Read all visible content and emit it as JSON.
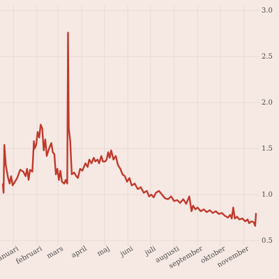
{
  "chart_data": {
    "type": "line",
    "x_unit": "day",
    "x_start": "2021-01-01",
    "ylim": [
      0.5,
      3.0
    ],
    "yticks": [
      0.5,
      1.0,
      1.5,
      2.0,
      2.5,
      3.0
    ],
    "ytick_labels": [
      "0.5",
      "1.0",
      "1.5",
      "2.0",
      "2.5",
      "3.0"
    ],
    "xticks": [
      {
        "date": "2021-01-15",
        "label": "januari"
      },
      {
        "date": "2021-02-15",
        "label": "februari"
      },
      {
        "date": "2021-03-15",
        "label": "mars"
      },
      {
        "date": "2021-04-15",
        "label": "april"
      },
      {
        "date": "2021-05-15",
        "label": "maj"
      },
      {
        "date": "2021-06-15",
        "label": "juni"
      },
      {
        "date": "2021-07-15",
        "label": "juli"
      },
      {
        "date": "2021-08-15",
        "label": "augusti"
      },
      {
        "date": "2021-09-15",
        "label": "september"
      },
      {
        "date": "2021-10-15",
        "label": "oktober"
      },
      {
        "date": "2021-11-15",
        "label": "november"
      }
    ],
    "grid": true,
    "x_label_rotation": -30,
    "series": [
      {
        "color": "#c0392b",
        "points": [
          [
            "2021-01-01",
            1.12
          ],
          [
            "2021-01-02",
            1.02
          ],
          [
            "2021-01-03",
            1.54
          ],
          [
            "2021-01-05",
            1.32
          ],
          [
            "2021-01-08",
            1.18
          ],
          [
            "2021-01-10",
            1.12
          ],
          [
            "2021-01-12",
            1.2
          ],
          [
            "2021-01-14",
            1.1
          ],
          [
            "2021-01-17",
            1.14
          ],
          [
            "2021-01-20",
            1.18
          ],
          [
            "2021-01-24",
            1.27
          ],
          [
            "2021-01-28",
            1.25
          ],
          [
            "2021-01-31",
            1.2
          ],
          [
            "2021-02-02",
            1.28
          ],
          [
            "2021-02-04",
            1.16
          ],
          [
            "2021-02-06",
            1.27
          ],
          [
            "2021-02-09",
            1.25
          ],
          [
            "2021-02-11",
            1.58
          ],
          [
            "2021-02-12",
            1.5
          ],
          [
            "2021-02-14",
            1.54
          ],
          [
            "2021-02-16",
            1.68
          ],
          [
            "2021-02-18",
            1.62
          ],
          [
            "2021-02-20",
            1.76
          ],
          [
            "2021-02-22",
            1.72
          ],
          [
            "2021-02-24",
            1.48
          ],
          [
            "2021-02-26",
            1.6
          ],
          [
            "2021-02-28",
            1.42
          ],
          [
            "2021-03-03",
            1.5
          ],
          [
            "2021-03-06",
            1.56
          ],
          [
            "2021-03-08",
            1.46
          ],
          [
            "2021-03-10",
            1.44
          ],
          [
            "2021-03-12",
            1.22
          ],
          [
            "2021-03-14",
            1.28
          ],
          [
            "2021-03-16",
            1.16
          ],
          [
            "2021-03-18",
            1.26
          ],
          [
            "2021-03-20",
            1.14
          ],
          [
            "2021-03-23",
            1.12
          ],
          [
            "2021-03-25",
            1.16
          ],
          [
            "2021-03-27",
            1.12
          ],
          [
            "2021-03-28",
            2.76
          ],
          [
            "2021-03-29",
            1.72
          ],
          [
            "2021-03-31",
            1.58
          ],
          [
            "2021-04-02",
            1.22
          ],
          [
            "2021-04-05",
            1.24
          ],
          [
            "2021-04-08",
            1.2
          ],
          [
            "2021-04-10",
            1.18
          ],
          [
            "2021-04-13",
            1.28
          ],
          [
            "2021-04-16",
            1.26
          ],
          [
            "2021-04-20",
            1.34
          ],
          [
            "2021-04-23",
            1.3
          ],
          [
            "2021-04-25",
            1.38
          ],
          [
            "2021-04-28",
            1.34
          ],
          [
            "2021-05-01",
            1.4
          ],
          [
            "2021-05-03",
            1.36
          ],
          [
            "2021-05-06",
            1.38
          ],
          [
            "2021-05-08",
            1.34
          ],
          [
            "2021-05-11",
            1.42
          ],
          [
            "2021-05-13",
            1.36
          ],
          [
            "2021-05-16",
            1.36
          ],
          [
            "2021-05-18",
            1.38
          ],
          [
            "2021-05-20",
            1.46
          ],
          [
            "2021-05-22",
            1.4
          ],
          [
            "2021-05-24",
            1.48
          ],
          [
            "2021-05-27",
            1.38
          ],
          [
            "2021-05-30",
            1.42
          ],
          [
            "2021-06-02",
            1.32
          ],
          [
            "2021-06-05",
            1.28
          ],
          [
            "2021-06-08",
            1.22
          ],
          [
            "2021-06-11",
            1.2
          ],
          [
            "2021-06-14",
            1.14
          ],
          [
            "2021-06-17",
            1.18
          ],
          [
            "2021-06-20",
            1.1
          ],
          [
            "2021-06-24",
            1.12
          ],
          [
            "2021-06-28",
            1.06
          ],
          [
            "2021-07-02",
            1.08
          ],
          [
            "2021-07-06",
            1.02
          ],
          [
            "2021-07-10",
            1.04
          ],
          [
            "2021-07-13",
            0.98
          ],
          [
            "2021-07-16",
            1.0
          ],
          [
            "2021-07-19",
            0.97
          ],
          [
            "2021-07-22",
            1.02
          ],
          [
            "2021-07-26",
            1.04
          ],
          [
            "2021-07-30",
            1.0
          ],
          [
            "2021-08-03",
            0.96
          ],
          [
            "2021-08-07",
            0.95
          ],
          [
            "2021-08-11",
            0.98
          ],
          [
            "2021-08-15",
            0.93
          ],
          [
            "2021-08-19",
            0.94
          ],
          [
            "2021-08-23",
            0.91
          ],
          [
            "2021-08-27",
            0.95
          ],
          [
            "2021-08-31",
            0.9
          ],
          [
            "2021-09-04",
            0.98
          ],
          [
            "2021-09-07",
            0.82
          ],
          [
            "2021-09-09",
            0.88
          ],
          [
            "2021-09-12",
            0.84
          ],
          [
            "2021-09-15",
            0.86
          ],
          [
            "2021-09-19",
            0.82
          ],
          [
            "2021-09-23",
            0.84
          ],
          [
            "2021-09-27",
            0.81
          ],
          [
            "2021-10-01",
            0.83
          ],
          [
            "2021-10-05",
            0.8
          ],
          [
            "2021-10-09",
            0.82
          ],
          [
            "2021-10-13",
            0.79
          ],
          [
            "2021-10-17",
            0.8
          ],
          [
            "2021-10-21",
            0.77
          ],
          [
            "2021-10-25",
            0.75
          ],
          [
            "2021-10-28",
            0.78
          ],
          [
            "2021-10-30",
            0.74
          ],
          [
            "2021-11-01",
            0.86
          ],
          [
            "2021-11-03",
            0.74
          ],
          [
            "2021-11-06",
            0.76
          ],
          [
            "2021-11-09",
            0.73
          ],
          [
            "2021-11-13",
            0.74
          ],
          [
            "2021-11-17",
            0.71
          ],
          [
            "2021-11-20",
            0.73
          ],
          [
            "2021-11-22",
            0.69
          ],
          [
            "2021-11-25",
            0.71
          ],
          [
            "2021-11-28",
            0.7
          ],
          [
            "2021-11-30",
            0.66
          ],
          [
            "2021-12-01",
            0.8
          ]
        ]
      }
    ]
  }
}
